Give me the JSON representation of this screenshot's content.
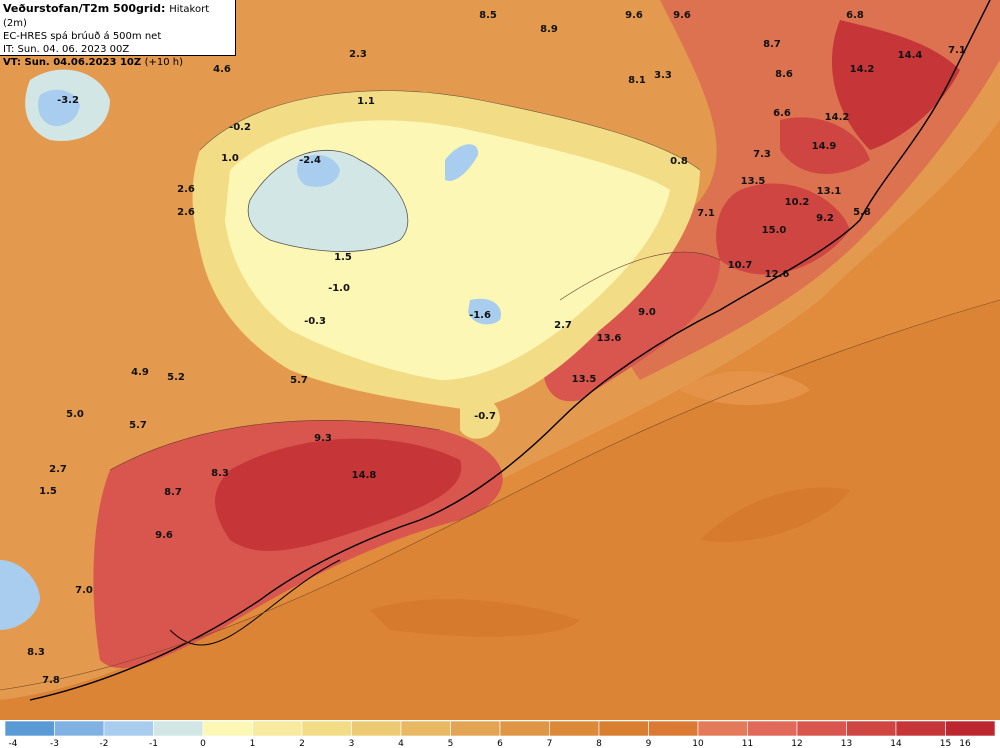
{
  "header": {
    "title": "Veðurstofan/T2m 500grid:",
    "title_sub": "Hitakort (2m)",
    "line2": "EC-HRES spá brúuð á 500m net",
    "line3": "IT: Sun. 04. 06. 2023 00Z",
    "line4": "VT: Sun. 04.06.2023 10Z",
    "line4_sub": "(+10 h)"
  },
  "colorbar": {
    "ticks": [
      "-4",
      "-3",
      "-2",
      "-1",
      "0",
      "1",
      "2",
      "3",
      "4",
      "5",
      "6",
      "7",
      "8",
      "9",
      "10",
      "11",
      "12",
      "13",
      "14",
      "15",
      "16"
    ],
    "colors": [
      "#5b9bd5",
      "#7fb2e3",
      "#a9cdef",
      "#d3e6e6",
      "#fdf7b5",
      "#f8ea9e",
      "#f2dc86",
      "#ecca72",
      "#e8b862",
      "#e3a553",
      "#df9645",
      "#dc8a3a",
      "#d98030",
      "#db7a35",
      "#e37a5a",
      "#e0695a",
      "#d8564e",
      "#cf4542",
      "#c63538",
      "#bc262f"
    ]
  },
  "labels": [
    {
      "text": "-3.2"
    },
    {
      "text": "4.6"
    },
    {
      "text": "2.3"
    },
    {
      "text": "8.5"
    },
    {
      "text": "8.9"
    },
    {
      "text": "9.6"
    },
    {
      "text": "9.6"
    },
    {
      "text": "6.8"
    },
    {
      "text": "7.1"
    },
    {
      "text": "14.4"
    },
    {
      "text": "14.2"
    },
    {
      "text": "8.7"
    },
    {
      "text": "8.6"
    },
    {
      "text": "8.1"
    },
    {
      "text": "3.3"
    },
    {
      "text": "1.1"
    },
    {
      "text": "-0.2"
    },
    {
      "text": "1.0"
    },
    {
      "text": "-2.4"
    },
    {
      "text": "6.6"
    },
    {
      "text": "14.2"
    },
    {
      "text": "14.9"
    },
    {
      "text": "7.3"
    },
    {
      "text": "0.8"
    },
    {
      "text": "13.5"
    },
    {
      "text": "13.1"
    },
    {
      "text": "10.2"
    },
    {
      "text": "5.8"
    },
    {
      "text": "2.6"
    },
    {
      "text": "2.6"
    },
    {
      "text": "7.1"
    },
    {
      "text": "9.2"
    },
    {
      "text": "15.0"
    },
    {
      "text": "1.5"
    },
    {
      "text": "-1.0"
    },
    {
      "text": "10.7"
    },
    {
      "text": "12.6"
    },
    {
      "text": "-0.3"
    },
    {
      "text": "-1.6"
    },
    {
      "text": "9.0"
    },
    {
      "text": "2.7"
    },
    {
      "text": "13.6"
    },
    {
      "text": "4.9"
    },
    {
      "text": "5.2"
    },
    {
      "text": "5.7"
    },
    {
      "text": "13.5"
    },
    {
      "text": "5.0"
    },
    {
      "text": "-0.7"
    },
    {
      "text": "5.7"
    },
    {
      "text": "9.3"
    },
    {
      "text": "2.7"
    },
    {
      "text": "14.8"
    },
    {
      "text": "8.3"
    },
    {
      "text": "1.5"
    },
    {
      "text": "8.7"
    },
    {
      "text": "9.6"
    },
    {
      "text": "7.0"
    },
    {
      "text": "8.3"
    },
    {
      "text": "7.8"
    }
  ]
}
